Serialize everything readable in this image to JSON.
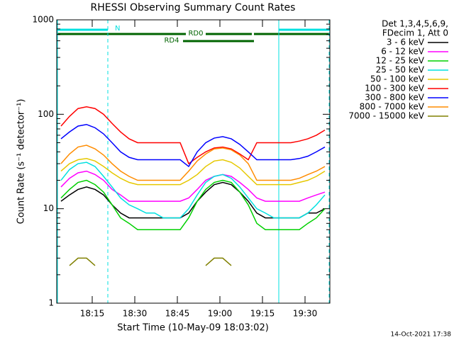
{
  "chart_data": {
    "type": "line",
    "title": "RHESSI Observing Summary Count Rates",
    "xlabel": "Start Time (10-May-09 18:03:02)",
    "ylabel": "Count Rate (s⁻¹ detector⁻¹)",
    "legend_header": [
      "Det 1,3,4,5,6,9,",
      "FDecim 1, Att 0"
    ],
    "annotations": [
      "N",
      "RD0",
      "RD4"
    ],
    "footer": "14-Oct-2021 17:38",
    "log_y": true,
    "legend": "right",
    "xlim": [
      2.5,
      98.75
    ],
    "ylim": [
      1,
      1000
    ],
    "xticks": [
      {
        "value": 15,
        "label": "18:15"
      },
      {
        "value": 30,
        "label": "18:30"
      },
      {
        "value": 45,
        "label": "18:45"
      },
      {
        "value": 60,
        "label": "19:00"
      },
      {
        "value": 75,
        "label": "19:15"
      },
      {
        "value": 90,
        "label": "19:30"
      }
    ],
    "yticks": [
      1,
      10,
      100,
      1000
    ],
    "x": [
      4,
      7,
      10,
      13,
      16,
      19,
      22,
      25,
      28,
      31,
      34,
      37,
      40,
      43,
      46,
      49,
      52,
      55,
      58,
      61,
      64,
      67,
      70,
      73,
      76,
      79,
      82,
      85,
      88,
      91,
      94,
      97
    ],
    "series": [
      {
        "name": "3 - 6 keV",
        "color": "#000000",
        "values": [
          12,
          14,
          16,
          17,
          16,
          14,
          11,
          9,
          8,
          8,
          8,
          8,
          8,
          8,
          8,
          9,
          12,
          15,
          18,
          19,
          18,
          15,
          12,
          9,
          8,
          8,
          8,
          8,
          8,
          9,
          9,
          10
        ]
      },
      {
        "name": "6 - 12 keV",
        "color": "#ff00ff",
        "values": [
          17,
          21,
          24,
          25,
          23,
          20,
          16,
          14,
          12,
          12,
          12,
          12,
          12,
          12,
          12,
          13,
          16,
          20,
          22,
          23,
          22,
          19,
          16,
          13,
          12,
          12,
          12,
          12,
          12,
          13,
          14,
          15
        ]
      },
      {
        "name": "12 - 25 keV",
        "color": "#00d000",
        "values": [
          13,
          16,
          19,
          20,
          18,
          15,
          11,
          8,
          7,
          6,
          6,
          6,
          6,
          6,
          6,
          8,
          12,
          16,
          19,
          20,
          19,
          15,
          11,
          7,
          6,
          6,
          6,
          6,
          6,
          7,
          8,
          10
        ]
      },
      {
        "name": "25 - 50 keV",
        "color": "#00e0e0",
        "values": [
          20,
          26,
          30,
          31,
          28,
          22,
          17,
          13,
          11,
          10,
          9,
          9,
          8,
          8,
          8,
          10,
          14,
          19,
          22,
          23,
          21,
          17,
          13,
          10,
          9,
          8,
          8,
          8,
          8,
          9,
          11,
          14
        ]
      },
      {
        "name": "50 - 100 keV",
        "color": "#e6c800",
        "values": [
          25,
          30,
          33,
          34,
          32,
          28,
          24,
          21,
          19,
          18,
          18,
          18,
          18,
          18,
          18,
          20,
          23,
          28,
          32,
          33,
          31,
          27,
          22,
          18,
          18,
          18,
          18,
          18,
          19,
          20,
          22,
          25
        ]
      },
      {
        "name": "100 - 300 keV",
        "color": "#ff0000",
        "values": [
          75,
          95,
          115,
          120,
          115,
          100,
          80,
          65,
          55,
          50,
          50,
          50,
          50,
          50,
          50,
          30,
          35,
          40,
          44,
          45,
          43,
          38,
          33,
          50,
          50,
          50,
          50,
          50,
          52,
          55,
          60,
          68
        ]
      },
      {
        "name": "300 - 800 keV",
        "color": "#0000ff",
        "values": [
          55,
          65,
          75,
          78,
          72,
          62,
          50,
          40,
          35,
          33,
          33,
          33,
          33,
          33,
          33,
          28,
          40,
          50,
          56,
          58,
          55,
          48,
          40,
          33,
          33,
          33,
          33,
          33,
          34,
          36,
          40,
          45
        ]
      },
      {
        "name": "800 - 7000 keV",
        "color": "#ff8c00",
        "values": [
          30,
          38,
          45,
          47,
          43,
          37,
          30,
          25,
          22,
          20,
          20,
          20,
          20,
          20,
          20,
          25,
          32,
          38,
          43,
          44,
          42,
          37,
          30,
          20,
          20,
          20,
          20,
          20,
          21,
          23,
          25,
          28
        ]
      },
      {
        "name": "7000 - 15000 keV",
        "color": "#808000",
        "values": [
          null,
          2.5,
          3,
          3,
          2.5,
          null,
          null,
          null,
          null,
          null,
          null,
          null,
          null,
          null,
          null,
          null,
          null,
          2.5,
          3,
          3,
          2.5,
          null,
          null,
          null,
          null,
          null,
          null,
          null,
          null,
          null,
          null,
          null
        ]
      }
    ]
  }
}
